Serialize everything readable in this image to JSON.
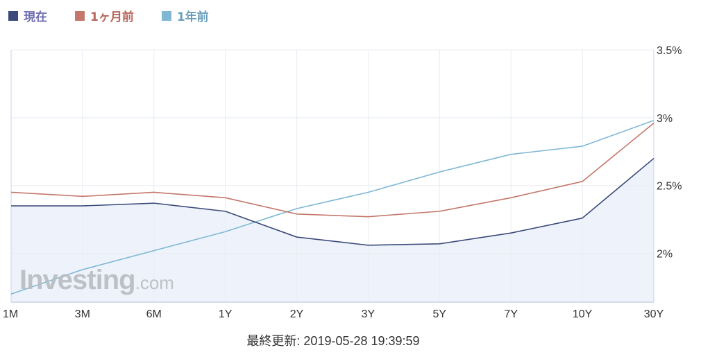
{
  "legend": [
    {
      "label": "現在",
      "color": "#3b4a7a",
      "text_color": "#6f6fb0"
    },
    {
      "label": "1ヶ月前",
      "color": "#c4776a",
      "text_color": "#b5665a"
    },
    {
      "label": "1年前",
      "color": "#7fb7d4",
      "text_color": "#6a9fbd"
    }
  ],
  "watermark": {
    "brand": "Investing",
    "suffix": ".com"
  },
  "footer": {
    "updated": "最終更新: 2019-05-28 19:39:59"
  },
  "chart_data": {
    "type": "line",
    "categories": [
      "1M",
      "3M",
      "6M",
      "1Y",
      "2Y",
      "3Y",
      "5Y",
      "7Y",
      "10Y",
      "30Y"
    ],
    "series": [
      {
        "name": "現在",
        "color": "#3b4a7a",
        "values": [
          2.35,
          2.35,
          2.37,
          2.31,
          2.12,
          2.06,
          2.07,
          2.15,
          2.26,
          2.7
        ],
        "fill": "#eef3fb"
      },
      {
        "name": "1ヶ月前",
        "color": "#c4776a",
        "values": [
          2.45,
          2.42,
          2.45,
          2.41,
          2.29,
          2.27,
          2.31,
          2.41,
          2.53,
          2.96
        ]
      },
      {
        "name": "1年前",
        "color": "#7fb7d4",
        "values": [
          1.7,
          1.88,
          2.02,
          2.16,
          2.33,
          2.45,
          2.6,
          2.73,
          2.79,
          2.98
        ]
      }
    ],
    "yticks": [
      2,
      2.5,
      3,
      3.5
    ],
    "ytick_labels": [
      "2%",
      "2.5%",
      "3%",
      "3.5%"
    ],
    "ylim": [
      1.64,
      3.5
    ],
    "grid": true,
    "axis_color": "#c8d2e4",
    "grid_color": "#e8ecf2"
  }
}
